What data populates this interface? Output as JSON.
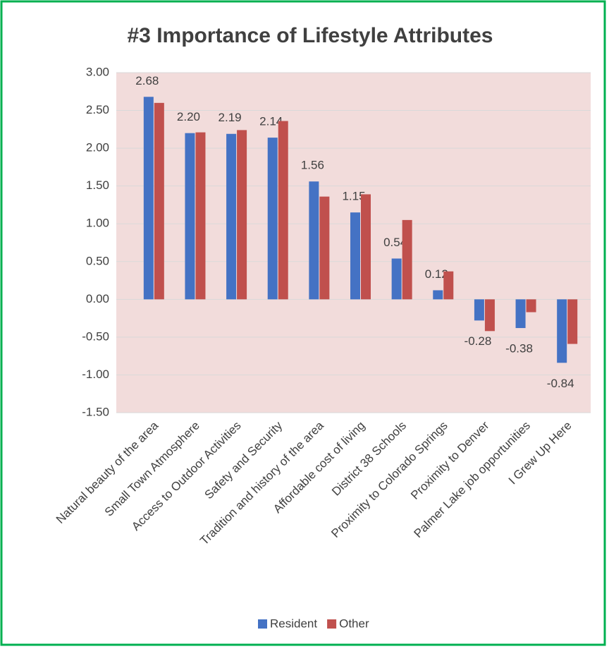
{
  "chart_data": {
    "type": "bar",
    "title": "#3 Importance of Lifestyle Attributes",
    "categories": [
      "Natural beauty of the area",
      "Small Town Atmosphere",
      "Access to Outdoor Activities",
      "Safety and Security",
      "Tradition and history of the area",
      "Affordable cost of living",
      "District 38 Schools",
      "Proximity to Colorado Springs",
      "Proximity to Denver",
      "Palmer Lake job opportunities",
      "I Grew Up Here"
    ],
    "series": [
      {
        "name": "Resident",
        "color": "#4472c4",
        "values": [
          2.68,
          2.2,
          2.19,
          2.14,
          1.56,
          1.15,
          0.54,
          0.12,
          -0.28,
          -0.38,
          -0.84
        ],
        "value_labels": [
          "2.68",
          "2.20",
          "2.19",
          "2.14",
          "1.56",
          "1.15",
          "0.54",
          "0.12",
          "-0.28",
          "-0.38",
          "-0.84"
        ]
      },
      {
        "name": "Other",
        "color": "#c0504d",
        "values": [
          2.6,
          2.21,
          2.24,
          2.36,
          1.36,
          1.39,
          1.05,
          0.37,
          -0.42,
          -0.17,
          -0.59
        ]
      }
    ],
    "ylim": [
      -1.5,
      3
    ],
    "yticks": [
      {
        "value": -1.5,
        "label": "-1.50"
      },
      {
        "value": -1,
        "label": "-1.00"
      },
      {
        "value": -0.5,
        "label": "-0.50"
      },
      {
        "value": 0,
        "label": "0.00"
      },
      {
        "value": 0.5,
        "label": "0.50"
      },
      {
        "value": 1,
        "label": "1.00"
      },
      {
        "value": 1.5,
        "label": "1.50"
      },
      {
        "value": 2,
        "label": "2.00"
      },
      {
        "value": 2.5,
        "label": "2.50"
      },
      {
        "value": 3,
        "label": "3.00"
      }
    ],
    "grid": true,
    "legend": "bottom"
  }
}
